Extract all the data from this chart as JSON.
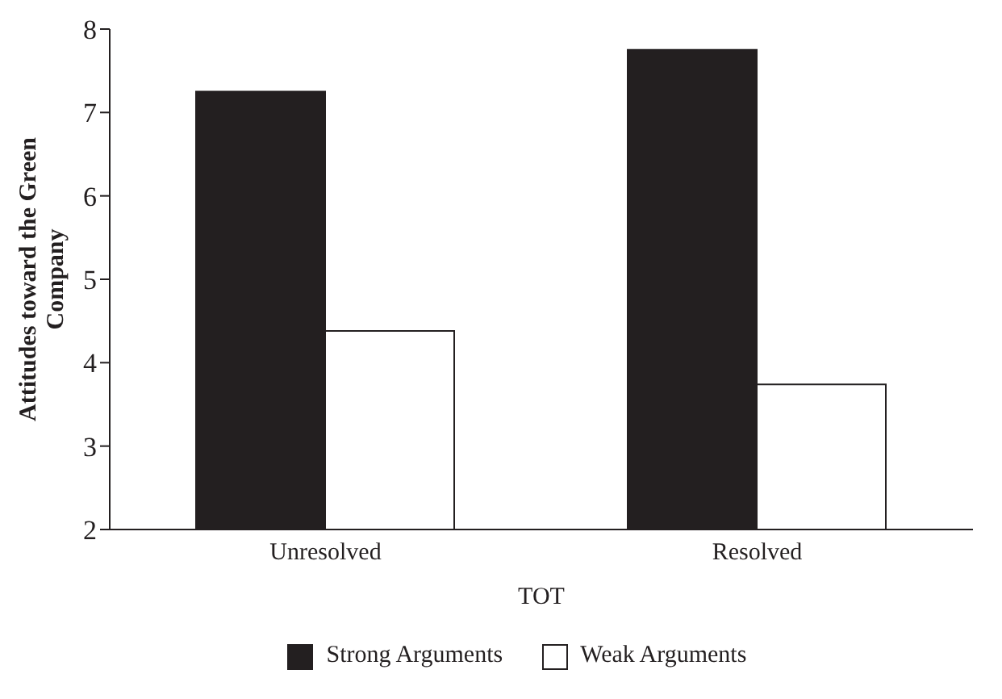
{
  "chart_data": {
    "type": "bar",
    "xlabel": "TOT",
    "ylabel": "Attitudes toward the Green Company",
    "categories": [
      "Unresolved",
      "Resolved"
    ],
    "series": [
      {
        "name": "Strong Arguments",
        "color": "#231f20",
        "values": [
          7.25,
          7.75
        ]
      },
      {
        "name": "Weak Arguments",
        "color": "#ffffff",
        "values": [
          4.38,
          3.74
        ]
      }
    ],
    "ylim": [
      2,
      8
    ],
    "yticks": [
      2,
      3,
      4,
      5,
      6,
      7,
      8
    ],
    "grid": false,
    "legend": "bottom"
  }
}
